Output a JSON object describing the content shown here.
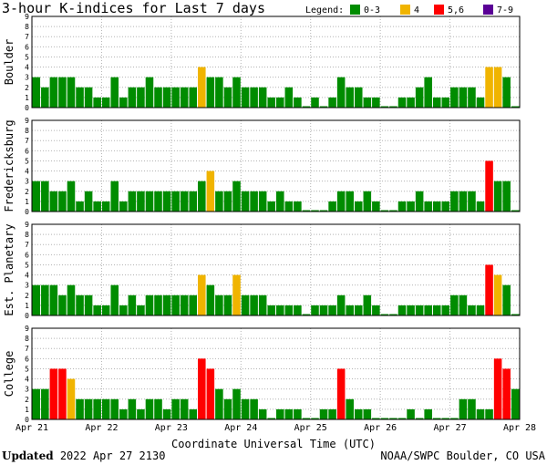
{
  "chart_data": {
    "type": "bar",
    "title": "3-hour K-indices for Last 7 days",
    "legend": {
      "label": "Legend:",
      "entries": [
        {
          "label": "0-3",
          "color": "#008c00"
        },
        {
          "label": "4",
          "color": "#f0b400"
        },
        {
          "label": "5,6",
          "color": "#ff0000"
        },
        {
          "label": "7-9",
          "color": "#5a0096"
        }
      ],
      "placement": "top-right"
    },
    "xlabel": "Coordinate Universal Time (UTC)",
    "x_ticks": [
      "Apr 21",
      "Apr 22",
      "Apr 23",
      "Apr 24",
      "Apr 25",
      "Apr 26",
      "Apr 27",
      "Apr 28"
    ],
    "y_ticks": [
      "0",
      "1",
      "2",
      "3",
      "4",
      "5",
      "6",
      "7",
      "8",
      "9"
    ],
    "ylim": [
      0,
      9
    ],
    "grid": true,
    "interval_hours": 3,
    "series": [
      {
        "name": "Boulder",
        "values": [
          3,
          2,
          3,
          3,
          3,
          2,
          2,
          1,
          1,
          3,
          1,
          2,
          2,
          3,
          2,
          2,
          2,
          2,
          2,
          4,
          3,
          3,
          2,
          3,
          2,
          2,
          2,
          1,
          1,
          2,
          1,
          0,
          1,
          0,
          1,
          3,
          2,
          2,
          1,
          1,
          0,
          0,
          1,
          1,
          2,
          3,
          1,
          1,
          2,
          2,
          2,
          1,
          4,
          4,
          3,
          0
        ]
      },
      {
        "name": "Fredericksburg",
        "values": [
          3,
          3,
          2,
          2,
          3,
          1,
          2,
          1,
          1,
          3,
          1,
          2,
          2,
          2,
          2,
          2,
          2,
          2,
          2,
          3,
          4,
          2,
          2,
          3,
          2,
          2,
          2,
          1,
          2,
          1,
          1,
          0,
          0,
          0,
          1,
          2,
          2,
          1,
          2,
          1,
          0,
          0,
          1,
          1,
          2,
          1,
          1,
          1,
          2,
          2,
          2,
          1,
          5,
          3,
          3,
          0
        ]
      },
      {
        "name": "Est. Planetary",
        "values": [
          3,
          3,
          3,
          2,
          3,
          2,
          2,
          1,
          1,
          3,
          1,
          2,
          1,
          2,
          2,
          2,
          2,
          2,
          2,
          4,
          3,
          2,
          2,
          4,
          2,
          2,
          2,
          1,
          1,
          1,
          1,
          0,
          1,
          1,
          1,
          2,
          1,
          1,
          2,
          1,
          0,
          0,
          1,
          1,
          1,
          1,
          1,
          1,
          2,
          2,
          1,
          1,
          5,
          4,
          3,
          0
        ]
      },
      {
        "name": "College",
        "values": [
          3,
          3,
          5,
          5,
          4,
          2,
          2,
          2,
          2,
          2,
          1,
          2,
          1,
          2,
          2,
          1,
          2,
          2,
          1,
          6,
          5,
          3,
          2,
          3,
          2,
          2,
          1,
          0,
          1,
          1,
          1,
          0,
          0,
          1,
          1,
          5,
          2,
          1,
          1,
          0,
          0,
          0,
          0,
          1,
          0,
          1,
          0,
          0,
          0,
          2,
          2,
          1,
          1,
          6,
          5,
          3
        ]
      }
    ]
  },
  "footer": {
    "updated_label": "Updated",
    "updated_value": "2022 Apr 27 2130",
    "credit": "NOAA/SWPC Boulder, CO USA"
  }
}
